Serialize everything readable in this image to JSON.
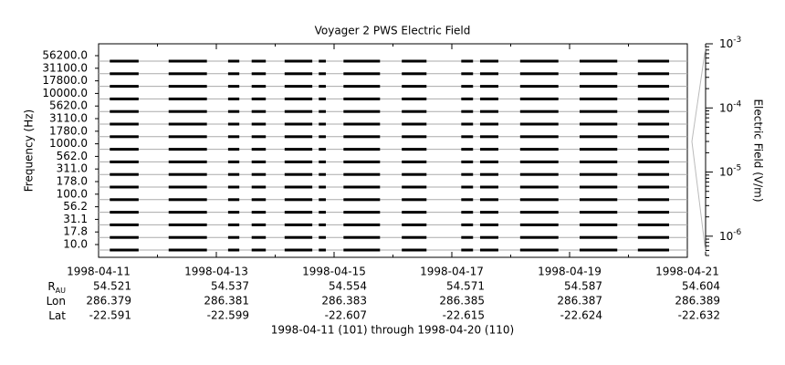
{
  "chart_data": {
    "type": "strip",
    "title": "Voyager 2 PWS Electric Field",
    "ylabel": "Frequency (Hz)",
    "channels": [
      "56200.0",
      "31100.0",
      "17800.0",
      "10000.0",
      "5620.0",
      "3110.0",
      "1780.0",
      "1000.0",
      "562.0",
      "311.0",
      "178.0",
      "100.0",
      "56.2",
      "31.1",
      "17.8",
      "10.0"
    ],
    "xlim": [
      0,
      10
    ],
    "xticks": [
      {
        "value": 0,
        "label": "1998-04-11"
      },
      {
        "value": 2,
        "label": "1998-04-13"
      },
      {
        "value": 4,
        "label": "1998-04-15"
      },
      {
        "value": 6,
        "label": "1998-04-17"
      },
      {
        "value": 8,
        "label": "1998-04-19"
      },
      {
        "value": 10,
        "label": "1998-04-21"
      }
    ],
    "xminorticks": [
      1,
      3,
      5,
      7,
      9
    ],
    "segments": [
      [
        0.19,
        0.68
      ],
      [
        1.19,
        1.84
      ],
      [
        2.2,
        2.39
      ],
      [
        2.6,
        2.84
      ],
      [
        3.16,
        3.63
      ],
      [
        3.74,
        3.86
      ],
      [
        4.16,
        4.78
      ],
      [
        5.15,
        5.57
      ],
      [
        6.16,
        6.36
      ],
      [
        6.48,
        6.79
      ],
      [
        7.16,
        7.81
      ],
      [
        8.17,
        8.81
      ],
      [
        9.16,
        9.69
      ]
    ],
    "color": "#000000",
    "baseline_color": "#aaaaaa",
    "y2label": "Electric Field (V/m)",
    "y2scale": "log",
    "y2lim": [
      5e-07,
      0.001
    ],
    "y2ticks": [
      {
        "value": 0.001,
        "label": "10",
        "exponent": "-3"
      },
      {
        "value": 0.0001,
        "label": "10",
        "exponent": "-4"
      },
      {
        "value": 1e-05,
        "label": "10",
        "exponent": "-5"
      },
      {
        "value": 1e-06,
        "label": "10",
        "exponent": "-6"
      }
    ],
    "ephemeris": [
      {
        "label": "R",
        "subscript": "AU",
        "values": [
          54.521,
          54.537,
          54.554,
          54.571,
          54.587,
          54.604
        ]
      },
      {
        "label": "Lon",
        "values": [
          286.379,
          286.381,
          286.383,
          286.385,
          286.387,
          286.389
        ]
      },
      {
        "label": "Lat",
        "values": [
          -22.591,
          -22.599,
          -22.607,
          -22.615,
          -22.624,
          -22.632
        ]
      }
    ],
    "footer": "1998-04-11 (101) through 1998-04-20 (110)"
  }
}
